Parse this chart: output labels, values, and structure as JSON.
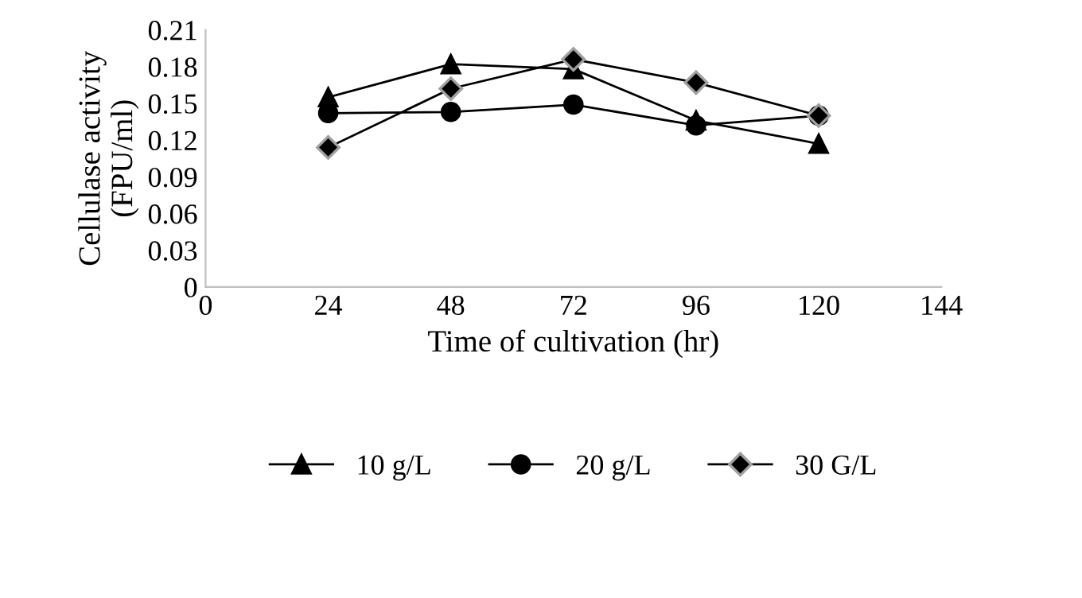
{
  "chart_data": {
    "type": "line",
    "xlabel": "Time of cultivation (hr)",
    "ylabel": "Cellulase activity\n(FPU/ml)",
    "x": [
      24,
      48,
      72,
      96,
      120
    ],
    "series": [
      {
        "name": "10 g/L",
        "color": "#000000",
        "marker": "triangle",
        "values": [
          0.155,
          0.182,
          0.178,
          0.136,
          0.117
        ]
      },
      {
        "name": "20 g/L",
        "color": "#000000",
        "marker": "circle",
        "values": [
          0.142,
          0.143,
          0.149,
          0.132,
          0.14
        ]
      },
      {
        "name": "30 G/L",
        "color": "#000000",
        "marker": "diamond",
        "values": [
          0.114,
          0.162,
          0.186,
          0.167,
          0.14
        ]
      }
    ],
    "xlim": [
      0,
      144
    ],
    "xticks": [
      0,
      24,
      48,
      72,
      96,
      120,
      144
    ],
    "ylim": [
      0,
      0.21
    ],
    "yticks": [
      {
        "value": 0,
        "label": "0"
      },
      {
        "value": 0.03,
        "label": "0.03"
      },
      {
        "value": 0.06,
        "label": "0.06"
      },
      {
        "value": 0.09,
        "label": "0.09"
      },
      {
        "value": 0.12,
        "label": "0.12"
      },
      {
        "value": 0.15,
        "label": "0.15"
      },
      {
        "value": 0.18,
        "label": "0.18"
      },
      {
        "value": 0.21,
        "label": "0.21"
      }
    ],
    "grid": false,
    "legend": "bottom"
  }
}
